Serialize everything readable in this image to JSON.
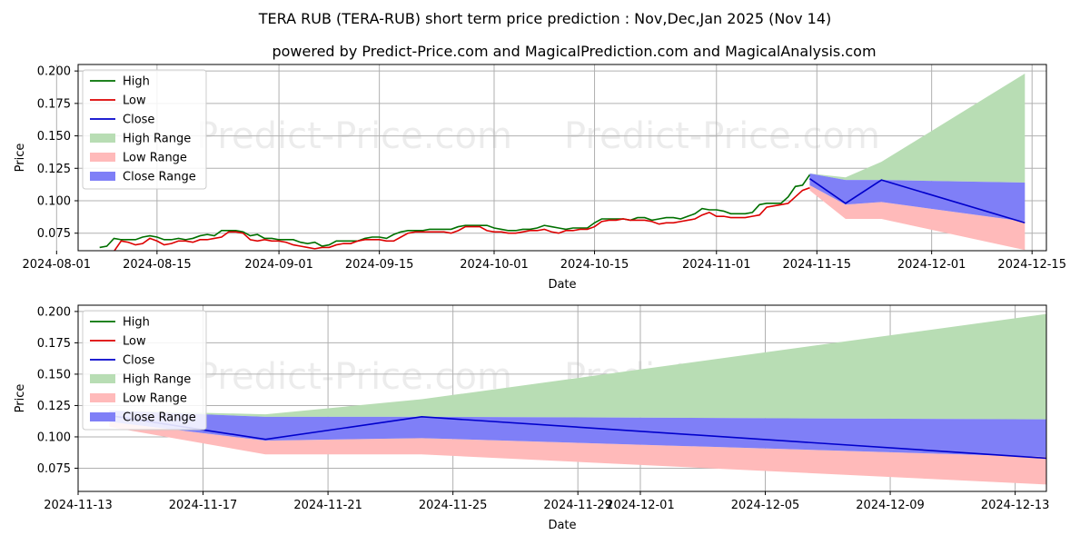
{
  "title": "TERA RUB (TERA-RUB) short term price prediction : Nov,Dec,Jan 2025 (Nov 14)",
  "subtitle": "powered by Predict-Price.com and MagicalPrediction.com and MagicalAnalysis.com",
  "watermark": "Predict-Price.com",
  "colors": {
    "high": "#007000",
    "low": "#dd0000",
    "close": "#0000cc",
    "high_range": "#b8ddb4",
    "low_range": "#ffbaba",
    "close_range": "#7f7ff7"
  },
  "chart_data": [
    {
      "type": "line",
      "name": "full",
      "xlabel": "Date",
      "ylabel": "Price",
      "xlim": [
        "2024-08-04",
        "2024-12-17"
      ],
      "ylim": [
        0.0615,
        0.205
      ],
      "x_ticks": [
        "2024-08-01",
        "2024-08-15",
        "2024-09-01",
        "2024-09-15",
        "2024-10-01",
        "2024-10-15",
        "2024-11-01",
        "2024-11-15",
        "2024-12-01",
        "2024-12-15"
      ],
      "y_ticks": [
        "0.075",
        "0.100",
        "0.125",
        "0.150",
        "0.175",
        "0.200"
      ],
      "legend": [
        "High",
        "Low",
        "Close",
        "High Range",
        "Low Range",
        "Close Range"
      ],
      "history": {
        "dates": [
          "2024-08-07",
          "2024-08-08",
          "2024-08-09",
          "2024-08-10",
          "2024-08-11",
          "2024-08-12",
          "2024-08-13",
          "2024-08-14",
          "2024-08-15",
          "2024-08-16",
          "2024-08-17",
          "2024-08-18",
          "2024-08-19",
          "2024-08-20",
          "2024-08-21",
          "2024-08-22",
          "2024-08-23",
          "2024-08-24",
          "2024-08-25",
          "2024-08-26",
          "2024-08-27",
          "2024-08-28",
          "2024-08-29",
          "2024-08-30",
          "2024-08-31",
          "2024-09-01",
          "2024-09-02",
          "2024-09-03",
          "2024-09-04",
          "2024-09-05",
          "2024-09-06",
          "2024-09-07",
          "2024-09-08",
          "2024-09-09",
          "2024-09-10",
          "2024-09-11",
          "2024-09-12",
          "2024-09-13",
          "2024-09-14",
          "2024-09-15",
          "2024-09-16",
          "2024-09-17",
          "2024-09-18",
          "2024-09-19",
          "2024-09-20",
          "2024-09-21",
          "2024-09-22",
          "2024-09-23",
          "2024-09-24",
          "2024-09-25",
          "2024-09-26",
          "2024-09-27",
          "2024-09-28",
          "2024-09-29",
          "2024-09-30",
          "2024-10-01",
          "2024-10-02",
          "2024-10-03",
          "2024-10-04",
          "2024-10-05",
          "2024-10-06",
          "2024-10-07",
          "2024-10-08",
          "2024-10-09",
          "2024-10-10",
          "2024-10-11",
          "2024-10-12",
          "2024-10-13",
          "2024-10-14",
          "2024-10-15",
          "2024-10-16",
          "2024-10-17",
          "2024-10-18",
          "2024-10-19",
          "2024-10-20",
          "2024-10-21",
          "2024-10-22",
          "2024-10-23",
          "2024-10-24",
          "2024-10-25",
          "2024-10-26",
          "2024-10-27",
          "2024-10-28",
          "2024-10-29",
          "2024-10-30",
          "2024-10-31",
          "2024-11-01",
          "2024-11-02",
          "2024-11-03",
          "2024-11-04",
          "2024-11-05",
          "2024-11-06",
          "2024-11-07",
          "2024-11-08",
          "2024-11-09",
          "2024-11-10",
          "2024-11-11",
          "2024-11-12",
          "2024-11-13",
          "2024-11-14"
        ],
        "high": [
          0.064,
          0.065,
          0.071,
          0.07,
          0.07,
          0.07,
          0.072,
          0.073,
          0.072,
          0.07,
          0.07,
          0.071,
          0.07,
          0.071,
          0.073,
          0.074,
          0.073,
          0.077,
          0.077,
          0.077,
          0.076,
          0.073,
          0.074,
          0.071,
          0.071,
          0.07,
          0.07,
          0.07,
          0.068,
          0.067,
          0.068,
          0.065,
          0.066,
          0.069,
          0.069,
          0.069,
          0.069,
          0.071,
          0.072,
          0.072,
          0.071,
          0.074,
          0.076,
          0.077,
          0.077,
          0.077,
          0.078,
          0.078,
          0.078,
          0.078,
          0.08,
          0.081,
          0.081,
          0.081,
          0.081,
          0.079,
          0.078,
          0.077,
          0.077,
          0.078,
          0.078,
          0.079,
          0.081,
          0.08,
          0.079,
          0.078,
          0.079,
          0.079,
          0.079,
          0.083,
          0.086,
          0.086,
          0.086,
          0.086,
          0.085,
          0.087,
          0.087,
          0.085,
          0.086,
          0.087,
          0.087,
          0.086,
          0.088,
          0.09,
          0.094,
          0.093,
          0.093,
          0.092,
          0.09,
          0.09,
          0.09,
          0.091,
          0.097,
          0.098,
          0.098,
          0.098,
          0.103,
          0.111,
          0.112,
          0.12
        ],
        "low": [
          0.06,
          0.061,
          0.061,
          0.069,
          0.068,
          0.066,
          0.067,
          0.071,
          0.069,
          0.066,
          0.067,
          0.069,
          0.069,
          0.068,
          0.07,
          0.07,
          0.071,
          0.072,
          0.076,
          0.076,
          0.075,
          0.07,
          0.069,
          0.07,
          0.069,
          0.069,
          0.068,
          0.066,
          0.065,
          0.064,
          0.063,
          0.064,
          0.064,
          0.066,
          0.067,
          0.067,
          0.069,
          0.07,
          0.07,
          0.07,
          0.069,
          0.069,
          0.072,
          0.075,
          0.076,
          0.076,
          0.076,
          0.076,
          0.076,
          0.075,
          0.077,
          0.08,
          0.08,
          0.08,
          0.077,
          0.076,
          0.076,
          0.075,
          0.075,
          0.076,
          0.077,
          0.077,
          0.078,
          0.076,
          0.075,
          0.077,
          0.077,
          0.078,
          0.078,
          0.08,
          0.084,
          0.085,
          0.085,
          0.086,
          0.085,
          0.085,
          0.085,
          0.084,
          0.082,
          0.083,
          0.083,
          0.084,
          0.085,
          0.086,
          0.089,
          0.091,
          0.088,
          0.088,
          0.087,
          0.087,
          0.087,
          0.088,
          0.089,
          0.095,
          0.096,
          0.097,
          0.098,
          0.103,
          0.108,
          0.11
        ]
      },
      "forecast": {
        "dates": [
          "2024-11-14",
          "2024-11-19",
          "2024-11-24",
          "2024-12-14"
        ],
        "close": [
          0.117,
          0.098,
          0.116,
          0.083
        ],
        "high_range": [
          0.121,
          0.118,
          0.13,
          0.198
        ],
        "low_range": [
          0.108,
          0.086,
          0.086,
          0.062
        ],
        "close_upper": [
          0.121,
          0.116,
          0.116,
          0.114
        ],
        "close_lower": [
          0.112,
          0.097,
          0.099,
          0.084
        ]
      }
    },
    {
      "type": "line",
      "name": "zoom",
      "xlabel": "Date",
      "ylabel": "Price",
      "xlim": [
        "2024-11-13",
        "2024-12-14"
      ],
      "ylim": [
        0.0565,
        0.205
      ],
      "x_ticks": [
        "2024-11-13",
        "2024-11-17",
        "2024-11-21",
        "2024-11-25",
        "2024-11-29",
        "2024-12-01",
        "2024-12-05",
        "2024-12-09",
        "2024-12-13"
      ],
      "y_ticks": [
        "0.075",
        "0.100",
        "0.125",
        "0.150",
        "0.175",
        "0.200"
      ],
      "legend": [
        "High",
        "Low",
        "Close",
        "High Range",
        "Low Range",
        "Close Range"
      ],
      "forecast": {
        "dates": [
          "2024-11-14",
          "2024-11-19",
          "2024-11-24",
          "2024-12-14"
        ],
        "close": [
          0.117,
          0.098,
          0.116,
          0.083
        ],
        "high_range": [
          0.121,
          0.118,
          0.13,
          0.198
        ],
        "low_range": [
          0.108,
          0.086,
          0.086,
          0.062
        ],
        "close_upper": [
          0.121,
          0.116,
          0.116,
          0.114
        ],
        "close_lower": [
          0.112,
          0.097,
          0.099,
          0.084
        ]
      }
    }
  ]
}
